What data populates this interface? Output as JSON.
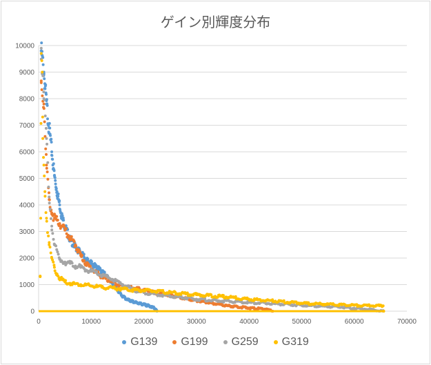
{
  "chart_data": {
    "type": "scatter",
    "title": "ゲイン別輝度分布",
    "xlabel": "",
    "ylabel": "",
    "xlim": [
      0,
      70000
    ],
    "ylim": [
      0,
      10000
    ],
    "x_ticks": [
      "0",
      "10000",
      "20000",
      "30000",
      "40000",
      "50000",
      "60000",
      "70000"
    ],
    "y_ticks": [
      "0",
      "1000",
      "2000",
      "3000",
      "4000",
      "5000",
      "6000",
      "7000",
      "8000",
      "9000",
      "10000"
    ],
    "grid": "horizontal",
    "legend_position": "bottom",
    "series": [
      {
        "name": "G139",
        "color": "#5b9bd5",
        "points": [
          [
            500,
            9800
          ],
          [
            1000,
            9000
          ],
          [
            1500,
            7800
          ],
          [
            2000,
            6900
          ],
          [
            2500,
            6000
          ],
          [
            3000,
            5100
          ],
          [
            3500,
            4500
          ],
          [
            4000,
            4000
          ],
          [
            4500,
            3500
          ],
          [
            5000,
            3200
          ],
          [
            6000,
            2700
          ],
          [
            7000,
            2400
          ],
          [
            8000,
            2200
          ],
          [
            9000,
            1950
          ],
          [
            10000,
            1800
          ],
          [
            11000,
            1650
          ],
          [
            12000,
            1500
          ],
          [
            13000,
            1300
          ],
          [
            14000,
            1050
          ],
          [
            15000,
            800
          ],
          [
            16000,
            550
          ],
          [
            17000,
            420
          ],
          [
            18000,
            350
          ],
          [
            19000,
            300
          ],
          [
            20000,
            250
          ],
          [
            21000,
            200
          ],
          [
            22000,
            120
          ],
          [
            22500,
            0
          ]
        ]
      },
      {
        "name": "G199",
        "color": "#ed7d31",
        "points": [
          [
            500,
            8600
          ],
          [
            1000,
            7800
          ],
          [
            1500,
            5500
          ],
          [
            2000,
            4200
          ],
          [
            2500,
            3700
          ],
          [
            3000,
            3500
          ],
          [
            4000,
            3300
          ],
          [
            5000,
            3050
          ],
          [
            6000,
            2750
          ],
          [
            7000,
            2500
          ],
          [
            8000,
            2100
          ],
          [
            9000,
            1800
          ],
          [
            10000,
            1600
          ],
          [
            12000,
            1300
          ],
          [
            14000,
            1100
          ],
          [
            16000,
            950
          ],
          [
            18000,
            870
          ],
          [
            20000,
            800
          ],
          [
            22000,
            700
          ],
          [
            25000,
            600
          ],
          [
            28000,
            480
          ],
          [
            30000,
            400
          ],
          [
            33000,
            300
          ],
          [
            36000,
            200
          ],
          [
            40000,
            120
          ],
          [
            43000,
            80
          ],
          [
            44500,
            0
          ]
        ]
      },
      {
        "name": "G259",
        "color": "#a5a5a5",
        "points": [
          [
            500,
            9900
          ],
          [
            1000,
            8000
          ],
          [
            1500,
            6500
          ],
          [
            2000,
            4300
          ],
          [
            2500,
            3200
          ],
          [
            3000,
            2500
          ],
          [
            4000,
            1950
          ],
          [
            5000,
            1850
          ],
          [
            6000,
            1800
          ],
          [
            7000,
            1700
          ],
          [
            8000,
            1650
          ],
          [
            9000,
            1550
          ],
          [
            10000,
            1500
          ],
          [
            12000,
            1350
          ],
          [
            14000,
            1200
          ],
          [
            16000,
            1000
          ],
          [
            18000,
            800
          ],
          [
            20000,
            700
          ],
          [
            22000,
            650
          ],
          [
            25000,
            560
          ],
          [
            28000,
            500
          ],
          [
            30000,
            450
          ],
          [
            35000,
            380
          ],
          [
            40000,
            330
          ],
          [
            45000,
            280
          ],
          [
            50000,
            220
          ],
          [
            55000,
            180
          ],
          [
            58000,
            150
          ],
          [
            60000,
            110
          ],
          [
            62000,
            80
          ],
          [
            65500,
            0
          ]
        ]
      },
      {
        "name": "G319",
        "color": "#ffc000",
        "points": [
          [
            300,
            1300
          ],
          [
            400,
            3500
          ],
          [
            500,
            9700
          ],
          [
            700,
            9000
          ],
          [
            800,
            6500
          ],
          [
            1000,
            5500
          ],
          [
            1200,
            4500
          ],
          [
            1500,
            3500
          ],
          [
            2000,
            2500
          ],
          [
            2500,
            2000
          ],
          [
            3000,
            1650
          ],
          [
            3500,
            1400
          ],
          [
            4000,
            1250
          ],
          [
            5000,
            1100
          ],
          [
            6000,
            1050
          ],
          [
            8000,
            1000
          ],
          [
            10000,
            950
          ],
          [
            12000,
            900
          ],
          [
            15000,
            850
          ],
          [
            18000,
            800
          ],
          [
            20000,
            780
          ],
          [
            22000,
            750
          ],
          [
            25000,
            700
          ],
          [
            28000,
            650
          ],
          [
            30000,
            620
          ],
          [
            35000,
            550
          ],
          [
            40000,
            450
          ],
          [
            45000,
            380
          ],
          [
            50000,
            300
          ],
          [
            55000,
            260
          ],
          [
            60000,
            220
          ],
          [
            65500,
            200
          ],
          [
            65600,
            0
          ]
        ]
      }
    ]
  }
}
